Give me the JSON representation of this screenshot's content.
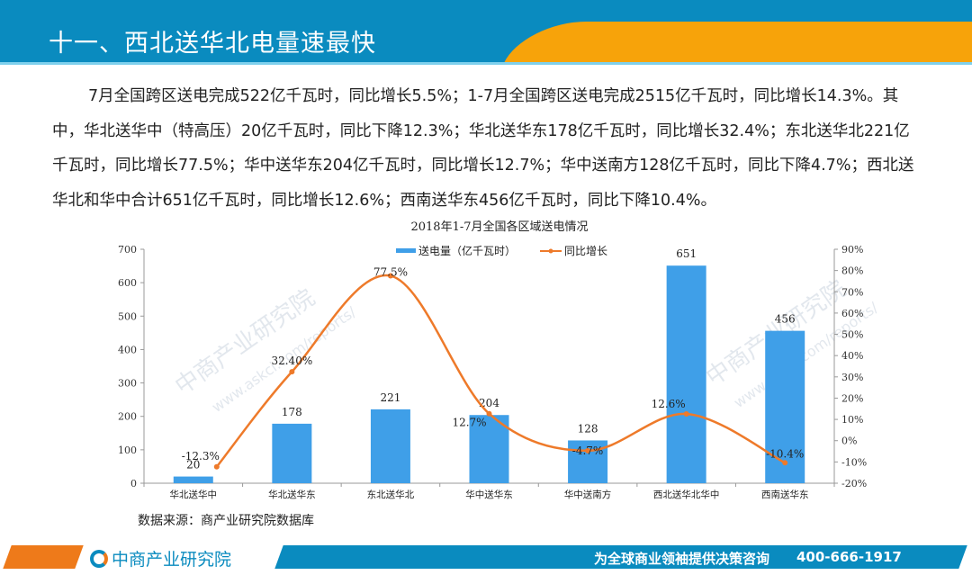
{
  "header": {
    "title": "十一、西北送华北电量速最快"
  },
  "paragraph": "7月全国跨区送电完成522亿千瓦时，同比增长5.5%；1-7月全国跨区送电完成2515亿千瓦时，同比增长14.3%。其中，华北送华中（特高压）20亿千瓦时，同比下降12.3%；华北送华东178亿千瓦时，同比增长32.4%；东北送华北221亿千瓦时，同比增长77.5%；华中送华东204亿千瓦时，同比增长12.7%；华中送南方128亿千瓦时，同比下降4.7%；西北送华北和华中合计651亿千瓦时，同比增长12.6%；西南送华东456亿千瓦时，同比下降10.4%。",
  "chart_data": {
    "type": "bar+line",
    "title": "2018年1-7月全国各区域送电情况",
    "categories": [
      "华北送华中",
      "华北送华东",
      "东北送华北",
      "华中送华东",
      "华中送南方",
      "西北送华北华中",
      "西南送华东"
    ],
    "series": [
      {
        "name": "送电量（亿千瓦时）",
        "type": "bar",
        "axis": "left",
        "values": [
          20,
          178,
          221,
          204,
          128,
          651,
          456
        ],
        "labels": [
          "20",
          "178",
          "221",
          "204",
          "128",
          "651",
          "456"
        ],
        "color": "#3f9fe8"
      },
      {
        "name": "同比增长",
        "type": "line",
        "axis": "right",
        "values": [
          -12.3,
          32.4,
          77.5,
          12.7,
          -4.7,
          12.6,
          -10.4
        ],
        "labels": [
          "-12.3%",
          "32.40%",
          "77.5%",
          "12.7%",
          "-4.7%",
          "12.6%",
          "-10.4%"
        ],
        "color": "#ee7a2a"
      }
    ],
    "ylim_left": [
      0,
      700
    ],
    "yticks_left": [
      "0",
      "100",
      "200",
      "300",
      "400",
      "500",
      "600",
      "700"
    ],
    "ylim_right": [
      -20,
      90
    ],
    "yticks_right": [
      "-20%",
      "-10%",
      "0%",
      "10%",
      "20%",
      "30%",
      "40%",
      "50%",
      "60%",
      "70%",
      "80%",
      "90%"
    ],
    "legend": "top-center",
    "grid": false
  },
  "source": "数据来源：商产业研究院数据库",
  "watermark": [
    "中商产业研究院",
    "www.askci.com/reports/"
  ],
  "footer": {
    "logo": "中商产业研究院",
    "slogan": "为全球商业领袖提供决策咨询",
    "phone": "400-666-1917"
  }
}
